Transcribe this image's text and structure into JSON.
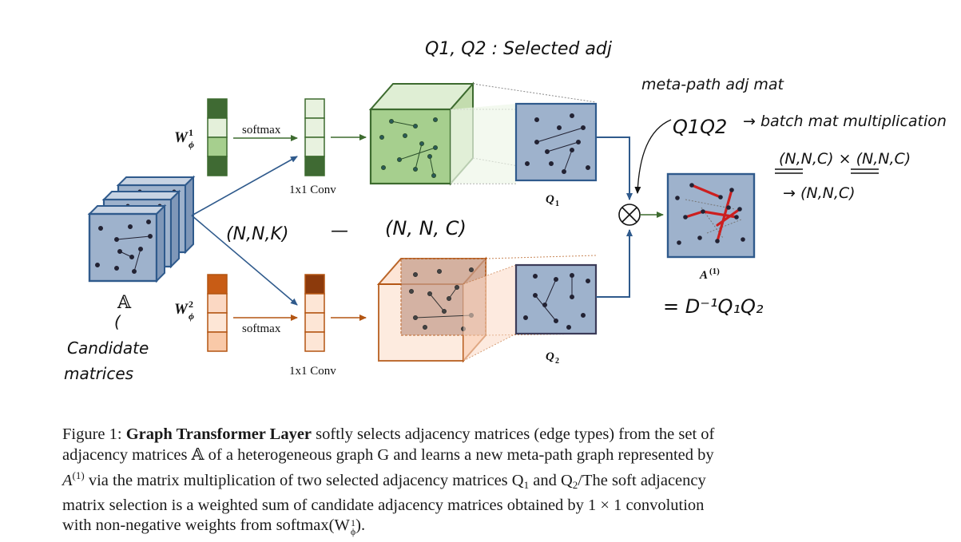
{
  "figure": {
    "handwritten": {
      "q_selected": "Q1, Q2 : Selected adj",
      "meta_path_adj_mat": "meta-path adj mat",
      "q1q2": "Q1Q2",
      "batch_mult": "→ batch mat multiplication",
      "shapes_product": "(N,N,C) × (N,N,C)",
      "shapes_result": "→ (N,N,C)",
      "nnk": "(N,N,K)",
      "arrow_dash": "—",
      "nnc": "(N, N, C)",
      "candidate": "Candidate",
      "matrices": "matrices",
      "paren": "(",
      "inverse_formula": "= D⁻¹Q₁Q₂"
    },
    "labels": {
      "softmax_top": "softmax",
      "softmax_bottom": "softmax",
      "conv_top": "1x1 Conv",
      "conv_bottom": "1x1 Conv",
      "w1_base": "W",
      "w1_sup": "1",
      "w1_sub": "ϕ",
      "w2_base": "W",
      "w2_sup": "2",
      "w2_sub": "ϕ",
      "A_blackboard": "𝔸",
      "q1": "Q",
      "q1_sub": "1",
      "q2": "Q",
      "q2_sub": "2",
      "a1": "A",
      "a1_sup": "(1)",
      "otimes": "⊗"
    },
    "colors": {
      "blue_stroke": "#2f5a8c",
      "blue_fill": "#9eb2cc",
      "green_stroke": "#3d6b2f",
      "green_dark": "#3f6a33",
      "green_mid": "#a6cf8e",
      "green_light": "#e4f0da",
      "orange_stroke": "#b35512",
      "orange_dark": "#c85c15",
      "orange_brown": "#8c3a0c",
      "orange_light": "#fbd8c3",
      "red_edge": "#cc1f1f"
    }
  },
  "caption": {
    "fig_label": "Figure 1:",
    "bold_title": "Graph Transformer Layer",
    "line1_rest": "softly selects adjacency matrices (edge types) from the set of",
    "line2": "adjacency matrices 𝔸 of a heterogeneous graph G and learns a new meta-path graph represented by",
    "line3_a": "A",
    "line3_sup": "(1)",
    "line3_b": "via the matrix multiplication of two selected adjacency matrices Q",
    "line3_sub1": "1",
    "line3_c": "and Q",
    "line3_sub2": "2",
    "line3_d": "/The soft adjacency",
    "line4": "matrix selection is a weighted sum of candidate adjacency matrices obtained by 1 × 1 convolution",
    "line5_a": "with non-negative weights from softmax(W",
    "line5_sup": "1",
    "line5_sub": "ϕ",
    "line5_b": ")."
  }
}
